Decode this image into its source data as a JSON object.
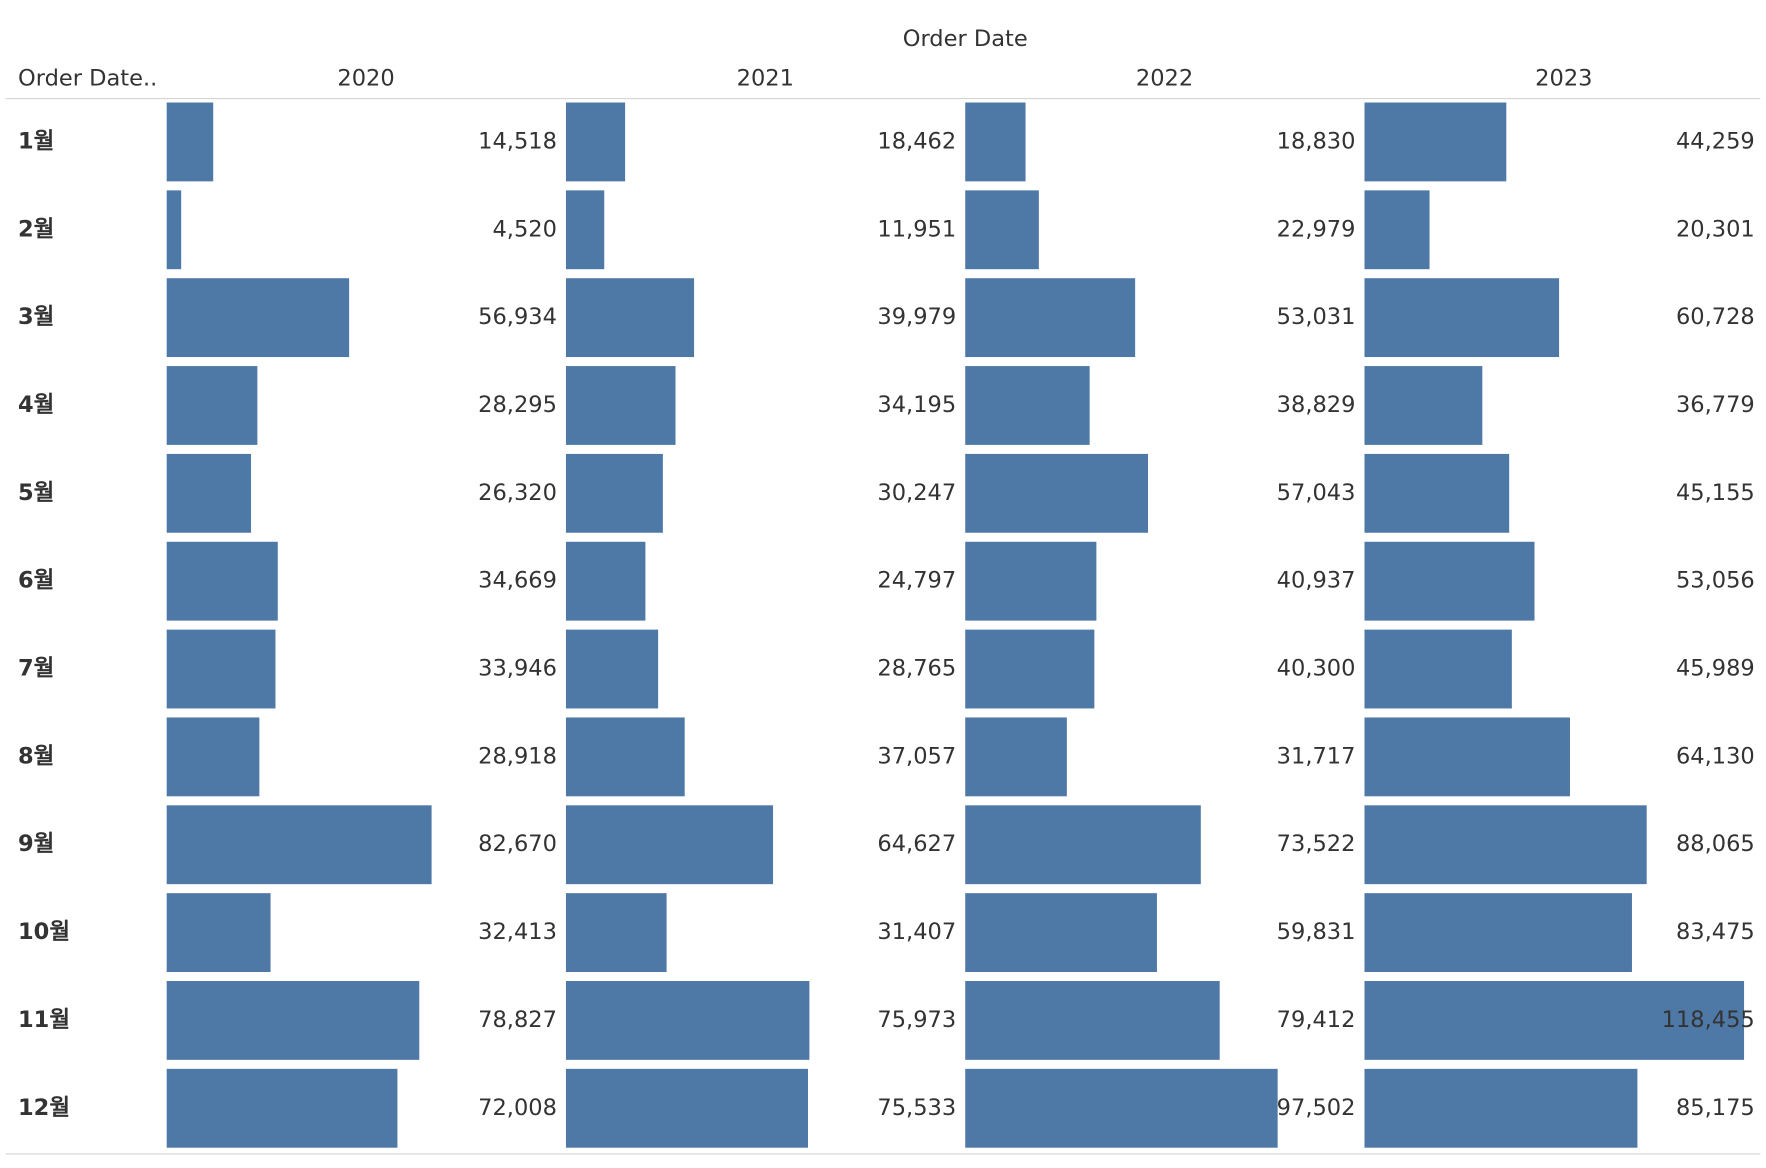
{
  "chart_data": {
    "type": "bar",
    "title": "Order Date",
    "row_header": "Order Date..",
    "categories": [
      "1월",
      "2월",
      "3월",
      "4월",
      "5월",
      "6월",
      "7월",
      "8월",
      "9월",
      "10월",
      "11월",
      "12월"
    ],
    "xlim": [
      0,
      124600
    ],
    "series": [
      {
        "name": "2020",
        "color": "#4e79a7",
        "values": [
          14518,
          4520,
          56934,
          28295,
          26320,
          34669,
          33946,
          28918,
          82670,
          32413,
          78827,
          72008
        ],
        "value_labels": [
          "14,518",
          "4,520",
          "56,934",
          "28,295",
          "26,320",
          "34,669",
          "33,946",
          "28,918",
          "82,670",
          "32,413",
          "78,827",
          "72,008"
        ]
      },
      {
        "name": "2021",
        "color": "#4e79a7",
        "values": [
          18462,
          11951,
          39979,
          34195,
          30247,
          24797,
          28765,
          37057,
          64627,
          31407,
          75973,
          75533
        ],
        "value_labels": [
          "18,462",
          "11,951",
          "39,979",
          "34,195",
          "30,247",
          "24,797",
          "28,765",
          "37,057",
          "64,627",
          "31,407",
          "75,973",
          "75,533"
        ]
      },
      {
        "name": "2022",
        "color": "#4e79a7",
        "values": [
          18830,
          22979,
          53031,
          38829,
          57043,
          40937,
          40300,
          31717,
          73522,
          59831,
          79412,
          97502
        ],
        "value_labels": [
          "18,830",
          "22,979",
          "53,031",
          "38,829",
          "57,043",
          "40,937",
          "40,300",
          "31,717",
          "73,522",
          "59,831",
          "79,412",
          "97,502"
        ]
      },
      {
        "name": "2023",
        "color": "#4e79a7",
        "values": [
          44259,
          20301,
          60728,
          36779,
          45155,
          53056,
          45989,
          64130,
          88065,
          83475,
          118455,
          85175
        ],
        "value_labels": [
          "44,259",
          "20,301",
          "60,728",
          "36,779",
          "45,155",
          "53,056",
          "45,989",
          "64,130",
          "88,065",
          "83,475",
          "118,455",
          "85,175"
        ]
      }
    ]
  }
}
